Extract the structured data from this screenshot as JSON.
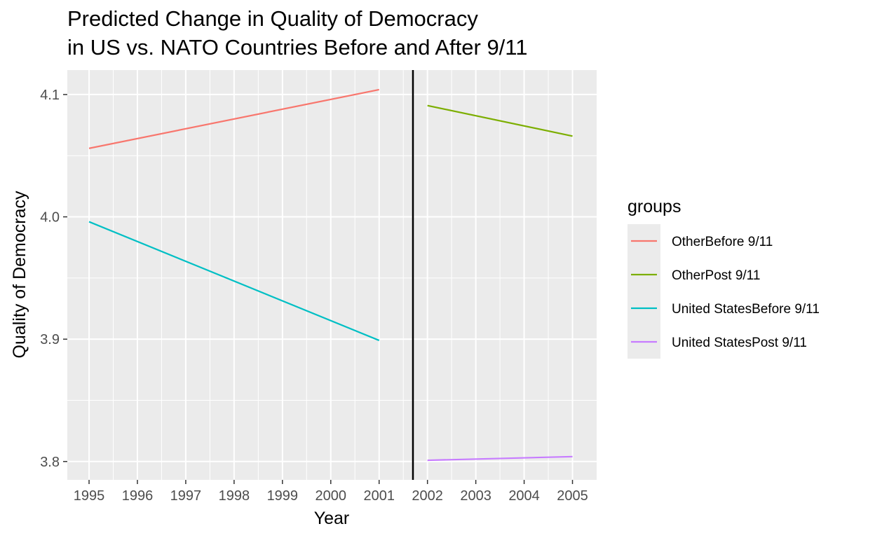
{
  "chart_data": {
    "type": "line",
    "title": [
      "Predicted Change in Quality of Democracy",
      "in US vs. NATO Countries Before and After 9/11"
    ],
    "xlabel": "Year",
    "ylabel": "Quality of Democracy",
    "xlim": [
      1994.55,
      2005.5
    ],
    "ylim": [
      3.785,
      4.12
    ],
    "x_ticks": [
      1995,
      1996,
      1997,
      1998,
      1999,
      2000,
      2001,
      2002,
      2003,
      2004,
      2005
    ],
    "x_tick_labels": [
      "1995",
      "1996",
      "1997",
      "1998",
      "1999",
      "2000",
      "2001",
      "2002",
      "2003",
      "2004",
      "2005"
    ],
    "y_ticks": [
      3.8,
      3.9,
      4.0,
      4.1
    ],
    "y_tick_labels": [
      "3.8",
      "3.9",
      "4.0",
      "4.1"
    ],
    "grid": true,
    "vline": 2001.7,
    "legend_title": "groups",
    "legend_position": "right",
    "series": [
      {
        "name": "OtherBefore 9/11",
        "color": "#F8766D",
        "x": [
          1995,
          2001
        ],
        "y": [
          4.056,
          4.104
        ]
      },
      {
        "name": "OtherPost 9/11",
        "color": "#7CAE00",
        "x": [
          2002,
          2005
        ],
        "y": [
          4.091,
          4.066
        ]
      },
      {
        "name": "United StatesBefore 9/11",
        "color": "#00BFC4",
        "x": [
          1995,
          2001
        ],
        "y": [
          3.996,
          3.899
        ]
      },
      {
        "name": "United StatesPost 9/11",
        "color": "#C77CFF",
        "x": [
          2002,
          2005
        ],
        "y": [
          3.801,
          3.804
        ]
      }
    ]
  }
}
